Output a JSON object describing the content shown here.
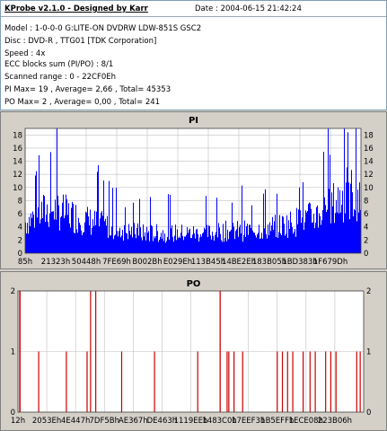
{
  "header": {
    "title": "KProbe v2.1.0 - Designed by Karr",
    "date": "Date : 2004-06-15 21:42:24",
    "lines": [
      "Model : 1-0-0-0 G:LITE-ON DVDRW LDW-851S   GSC2",
      "Disc : DVD-R , TTG01 [TDK Corporation]",
      "Speed : 4x",
      "ECC blocks sum (PI/PO) : 8/1",
      "Scanned range : 0 - 22CF0Eh",
      "PI Max= 19 , Average= 2,66 , Total= 45353",
      "PO Max= 2 , Average= 0,00 , Total= 241"
    ]
  },
  "colors": {
    "pi_fill": "#0000ff",
    "po_line": "#cc0000",
    "panel": "#d4d0c8",
    "plot_bg": "#ffffff"
  },
  "chart_data": [
    {
      "type": "bar",
      "title": "PI",
      "ylim": [
        0,
        19
      ],
      "yticks": [
        0,
        2,
        4,
        6,
        8,
        10,
        12,
        14,
        16,
        18
      ],
      "xtick_labels": [
        "85h",
        "21323h",
        "50448h",
        "7FE69h",
        "B002Bh",
        "E029Eh",
        "113B45h",
        "14BE2Eh",
        "183B05h",
        "1BD383h",
        "1F679Dh"
      ],
      "grid": true,
      "x_range": [
        "0",
        "22CF0E"
      ],
      "profile": [
        [
          0,
          7
        ],
        [
          0.04,
          9
        ],
        [
          0.08,
          10
        ],
        [
          0.12,
          9
        ],
        [
          0.16,
          8
        ],
        [
          0.2,
          7
        ],
        [
          0.25,
          6
        ],
        [
          0.3,
          5
        ],
        [
          0.35,
          4.5
        ],
        [
          0.4,
          4.5
        ],
        [
          0.45,
          4.5
        ],
        [
          0.5,
          4.5
        ],
        [
          0.55,
          4.5
        ],
        [
          0.6,
          5
        ],
        [
          0.65,
          5
        ],
        [
          0.7,
          5.5
        ],
        [
          0.75,
          6
        ],
        [
          0.8,
          7
        ],
        [
          0.85,
          8
        ],
        [
          0.9,
          10
        ],
        [
          0.95,
          13
        ],
        [
          1.0,
          14
        ]
      ],
      "max": 19,
      "average": 2.66
    },
    {
      "type": "bar",
      "title": "PO",
      "ylim": [
        0,
        2
      ],
      "yticks": [
        0,
        1,
        2
      ],
      "xtick_labels": [
        "12h",
        "2053Eh",
        "4E447h",
        "7DF5Bh",
        "AE367h",
        "DE463h",
        "1119EEh",
        "1483C0h",
        "17EEF3h",
        "1B5EFFh",
        "1ECE08h",
        "223B06h"
      ],
      "grid": true,
      "x_range": [
        "0",
        "22CF0E"
      ],
      "spikes": [
        [
          0.005,
          2
        ],
        [
          0.006,
          2
        ],
        [
          0.06,
          1
        ],
        [
          0.14,
          1
        ],
        [
          0.2,
          1
        ],
        [
          0.21,
          2
        ],
        [
          0.225,
          2
        ],
        [
          0.3,
          1
        ],
        [
          0.395,
          1
        ],
        [
          0.52,
          1
        ],
        [
          0.585,
          2
        ],
        [
          0.605,
          1
        ],
        [
          0.61,
          1
        ],
        [
          0.625,
          1
        ],
        [
          0.65,
          1
        ],
        [
          0.75,
          1
        ],
        [
          0.765,
          1
        ],
        [
          0.78,
          1
        ],
        [
          0.795,
          1
        ],
        [
          0.825,
          1
        ],
        [
          0.845,
          1
        ],
        [
          0.86,
          1
        ],
        [
          0.89,
          1
        ],
        [
          0.905,
          1
        ],
        [
          0.92,
          1
        ],
        [
          0.98,
          1
        ],
        [
          0.99,
          1
        ]
      ]
    }
  ]
}
